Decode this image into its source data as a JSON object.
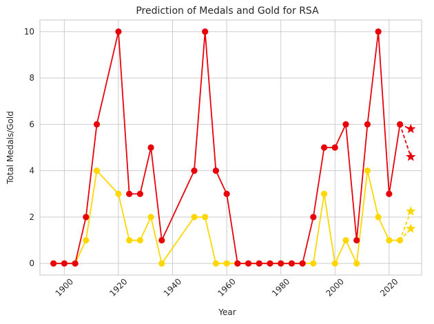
{
  "chart_data": {
    "type": "line",
    "title": "Prediction of Medals and Gold for RSA",
    "xlabel": "Year",
    "ylabel": "Total Medals/Gold",
    "xlim": [
      1891,
      2032
    ],
    "ylim": [
      -0.5,
      10.5
    ],
    "xticks": [
      1900,
      1920,
      1940,
      1960,
      1980,
      2000,
      2020
    ],
    "yticks": [
      0,
      2,
      4,
      6,
      8,
      10
    ],
    "grid": true,
    "colors": {
      "total": "#e8000b",
      "gold": "#ffd700",
      "grid": "#cccccc",
      "axis": "#cccccc"
    },
    "series": [
      {
        "key": "total",
        "color": "#e8000b",
        "x": [
          1896,
          1900,
          1904,
          1908,
          1912,
          1920,
          1924,
          1928,
          1932,
          1936,
          1948,
          1952,
          1956,
          1960,
          1964,
          1968,
          1972,
          1976,
          1980,
          1984,
          1988,
          1992,
          1996,
          2000,
          2004,
          2008,
          2012,
          2016,
          2020,
          2024
        ],
        "y": [
          0,
          0,
          0,
          2,
          6,
          10,
          3,
          3,
          5,
          1,
          4,
          10,
          4,
          3,
          0,
          0,
          0,
          0,
          0,
          0,
          0,
          2,
          5,
          5,
          6,
          1,
          6,
          10,
          3,
          6
        ]
      },
      {
        "key": "gold",
        "color": "#ffd700",
        "x": [
          1896,
          1900,
          1904,
          1908,
          1912,
          1920,
          1924,
          1928,
          1932,
          1936,
          1948,
          1952,
          1956,
          1960,
          1964,
          1968,
          1972,
          1976,
          1980,
          1984,
          1988,
          1992,
          1996,
          2000,
          2004,
          2008,
          2012,
          2016,
          2020,
          2024
        ],
        "y": [
          0,
          0,
          0,
          1,
          4,
          3,
          1,
          1,
          2,
          0,
          2,
          2,
          0,
          0,
          0,
          0,
          0,
          0,
          0,
          0,
          0,
          0,
          3,
          0,
          1,
          0,
          4,
          2,
          1,
          1
        ]
      }
    ],
    "predictions": [
      {
        "key": "total-prediction-high",
        "color": "#e8000b",
        "from": [
          2024,
          6
        ],
        "to": [
          2028,
          5.8
        ]
      },
      {
        "key": "total-prediction-low",
        "color": "#e8000b",
        "from": [
          2024,
          6
        ],
        "to": [
          2028,
          4.6
        ]
      },
      {
        "key": "gold-prediction-high",
        "color": "#ffd700",
        "from": [
          2024,
          1
        ],
        "to": [
          2028,
          2.25
        ]
      },
      {
        "key": "gold-prediction-low",
        "color": "#ffd700",
        "from": [
          2024,
          1
        ],
        "to": [
          2028,
          1.5
        ]
      }
    ]
  }
}
